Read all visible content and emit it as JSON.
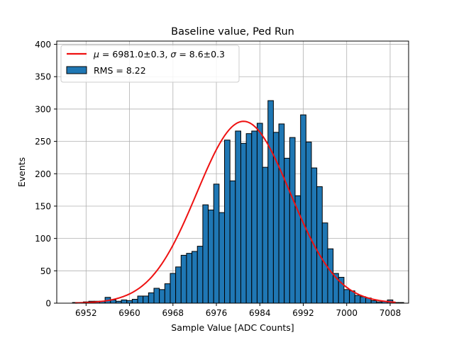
{
  "chart_data": {
    "type": "bar",
    "title": "Baseline value, Ped Run",
    "xlabel": "Sample Value [ADC Counts]",
    "ylabel": "Events",
    "xlim": [
      6946.6,
      7011.4
    ],
    "ylim": [
      0,
      405
    ],
    "grid": true,
    "legend_position": "top-left",
    "xticks": [
      6952,
      6960,
      6968,
      6976,
      6984,
      6992,
      7000,
      7008
    ],
    "yticks": [
      0,
      50,
      100,
      150,
      200,
      250,
      300,
      350,
      400
    ],
    "bins": {
      "start": 6949.5,
      "width": 1,
      "counts": [
        1,
        1,
        2,
        3,
        3,
        3,
        9,
        5,
        3,
        5,
        4,
        6,
        11,
        11,
        16,
        23,
        21,
        30,
        46,
        56,
        74,
        77,
        80,
        88,
        152,
        144,
        184,
        140,
        252,
        189,
        266,
        247,
        262,
        266,
        278,
        210,
        313,
        264,
        277,
        224,
        256,
        166,
        291,
        249,
        209,
        180,
        124,
        84,
        46,
        40,
        21,
        19,
        12,
        10,
        8,
        4,
        2,
        3,
        5,
        1,
        1,
        0
      ]
    },
    "fit": {
      "type": "gaussian",
      "mu": 6981.0,
      "sigma": 8.6,
      "amplitude": 281,
      "x_range": [
        6950,
        7009
      ]
    },
    "colors": {
      "bar_fill": "#1f77b4",
      "bar_edge": "#000000",
      "fit_line": "#ee1111",
      "grid": "#b0b0b0"
    },
    "legend": {
      "fit_label": {
        "mu_symbol": "μ",
        "mu_text": " = 6981.0±0.3, ",
        "sigma_symbol": "σ",
        "sigma_text": " = 8.6±0.3"
      },
      "hist_label": "RMS = 8.22"
    }
  }
}
